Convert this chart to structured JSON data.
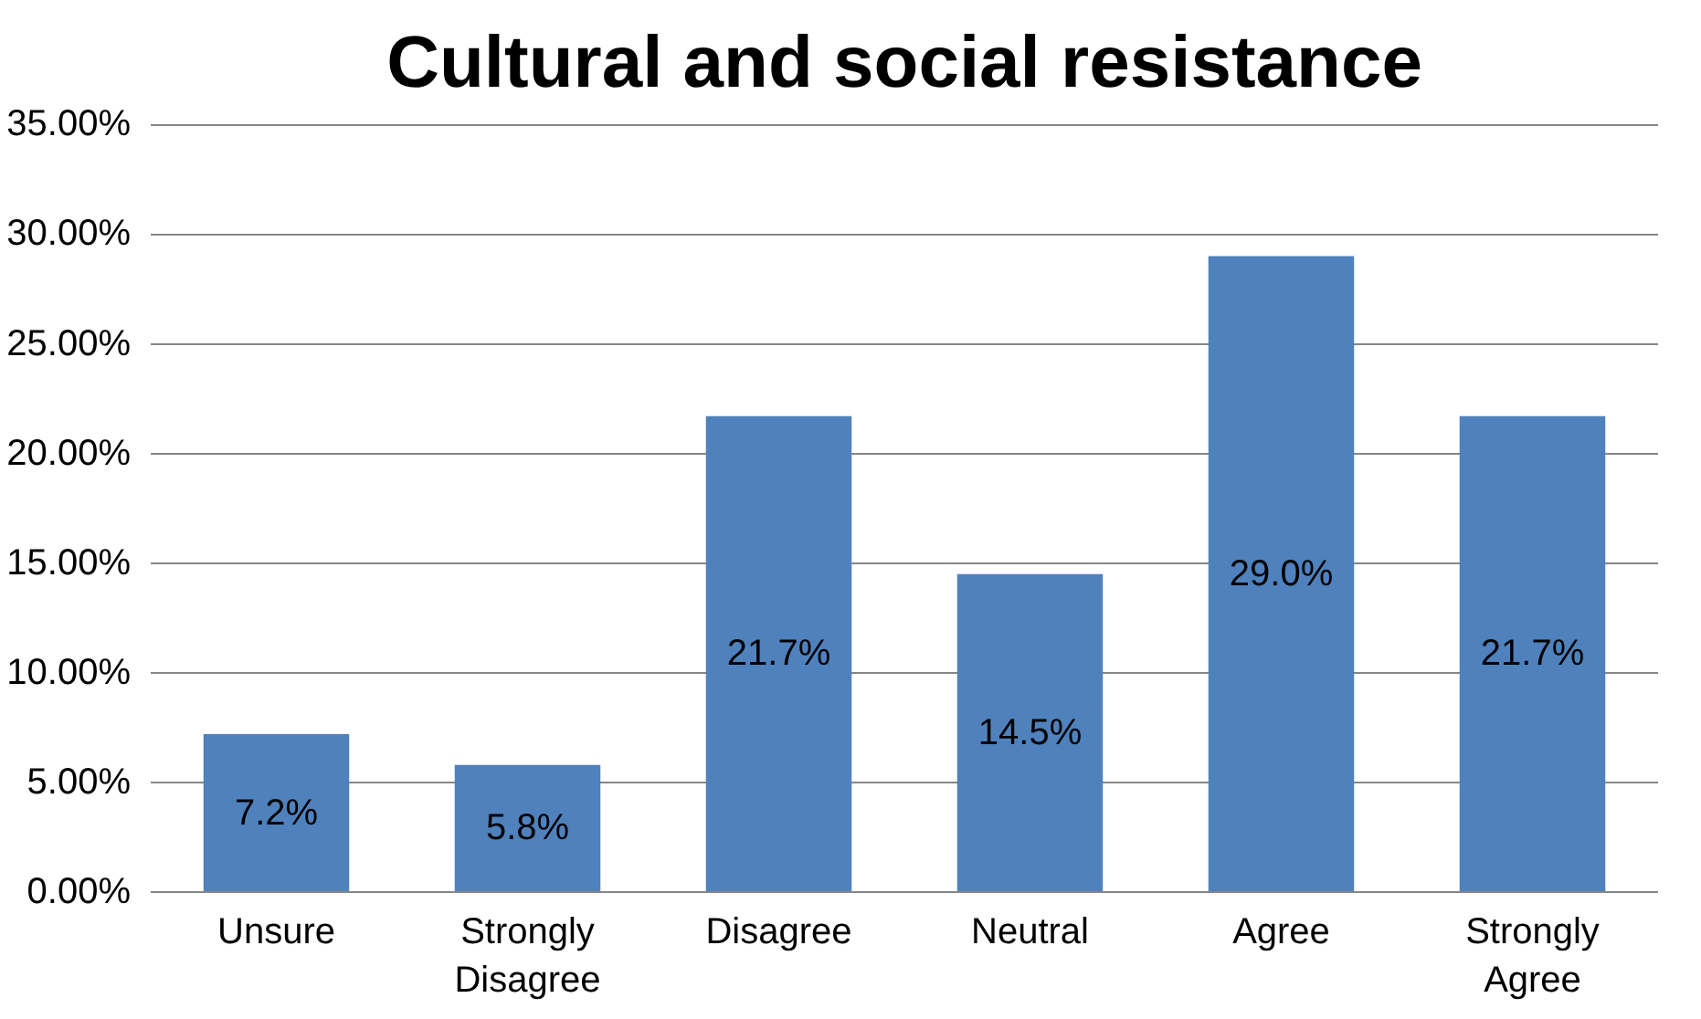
{
  "chart_data": {
    "type": "bar",
    "title": "Cultural and social resistance",
    "categories": [
      "Unsure",
      "Strongly Disagree",
      "Disagree",
      "Neutral",
      "Agree",
      "Strongly Agree"
    ],
    "values": [
      7.2,
      5.8,
      21.7,
      14.5,
      29.0,
      21.7
    ],
    "value_labels": [
      "7.2%",
      "5.8%",
      "21.7%",
      "14.5%",
      "29.0%",
      "21.7%"
    ],
    "color": "#4f81bd",
    "ylim": [
      0,
      35
    ],
    "yticks": [
      {
        "value": 0,
        "label": "0.00%"
      },
      {
        "value": 5,
        "label": "5.00%"
      },
      {
        "value": 10,
        "label": "10.00%"
      },
      {
        "value": 15,
        "label": "15.00%"
      },
      {
        "value": 20,
        "label": "20.00%"
      },
      {
        "value": 25,
        "label": "25.00%"
      },
      {
        "value": 30,
        "label": "30.00%"
      },
      {
        "value": 35,
        "label": "35.00%"
      }
    ],
    "grid": "y"
  }
}
